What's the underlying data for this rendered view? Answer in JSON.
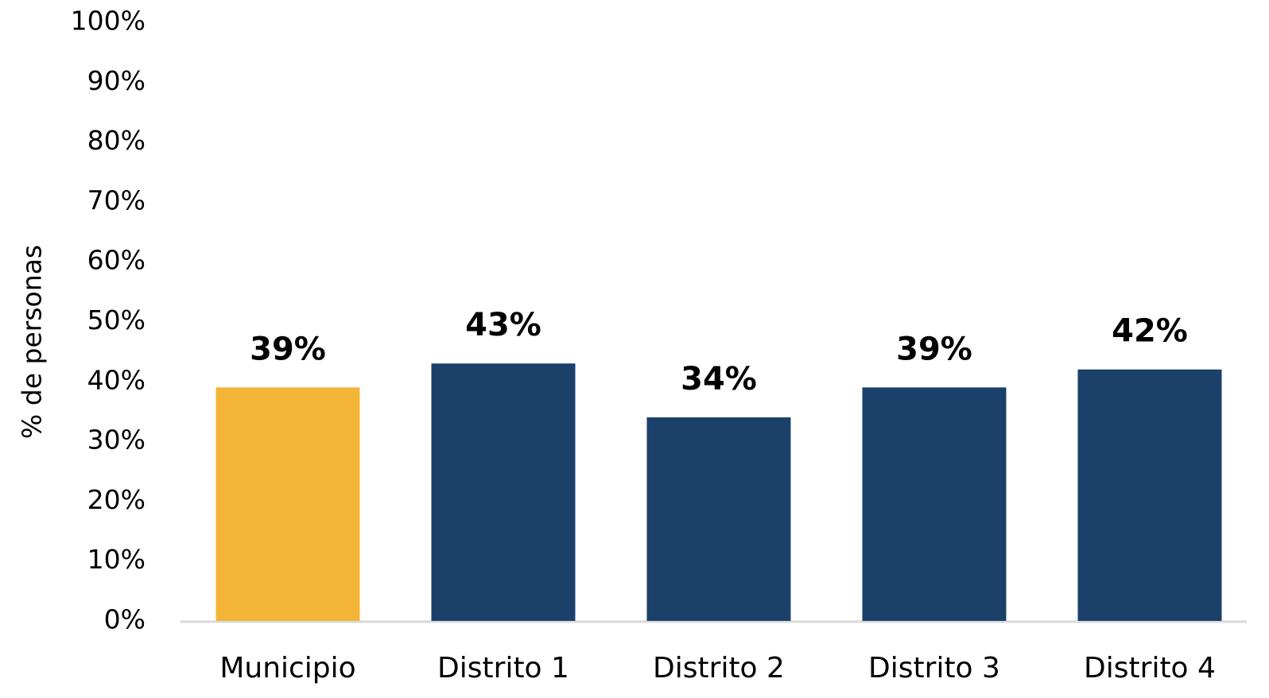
{
  "chart_data": {
    "type": "bar",
    "y_label": "% de personas",
    "categories": [
      "Municipio",
      "Distrito 1",
      "Distrito 2",
      "Distrito 3",
      "Distrito 4"
    ],
    "values": [
      39,
      43,
      34,
      39,
      42
    ],
    "value_labels": [
      "39%",
      "43%",
      "34%",
      "39%",
      "42%"
    ],
    "colors": [
      "#f3b437",
      "#1b416b",
      "#1b416b",
      "#1b416b",
      "#1b416b"
    ],
    "ylim": [
      0,
      100
    ],
    "yticks": [
      {
        "value": 0,
        "label": "0%"
      },
      {
        "value": 10,
        "label": "10%"
      },
      {
        "value": 20,
        "label": "20%"
      },
      {
        "value": 30,
        "label": "30%"
      },
      {
        "value": 40,
        "label": "40%"
      },
      {
        "value": 50,
        "label": "50%"
      },
      {
        "value": 60,
        "label": "60%"
      },
      {
        "value": 70,
        "label": "70%"
      },
      {
        "value": 80,
        "label": "80%"
      },
      {
        "value": 90,
        "label": "90%"
      },
      {
        "value": 100,
        "label": "100%"
      }
    ],
    "grid": false
  }
}
